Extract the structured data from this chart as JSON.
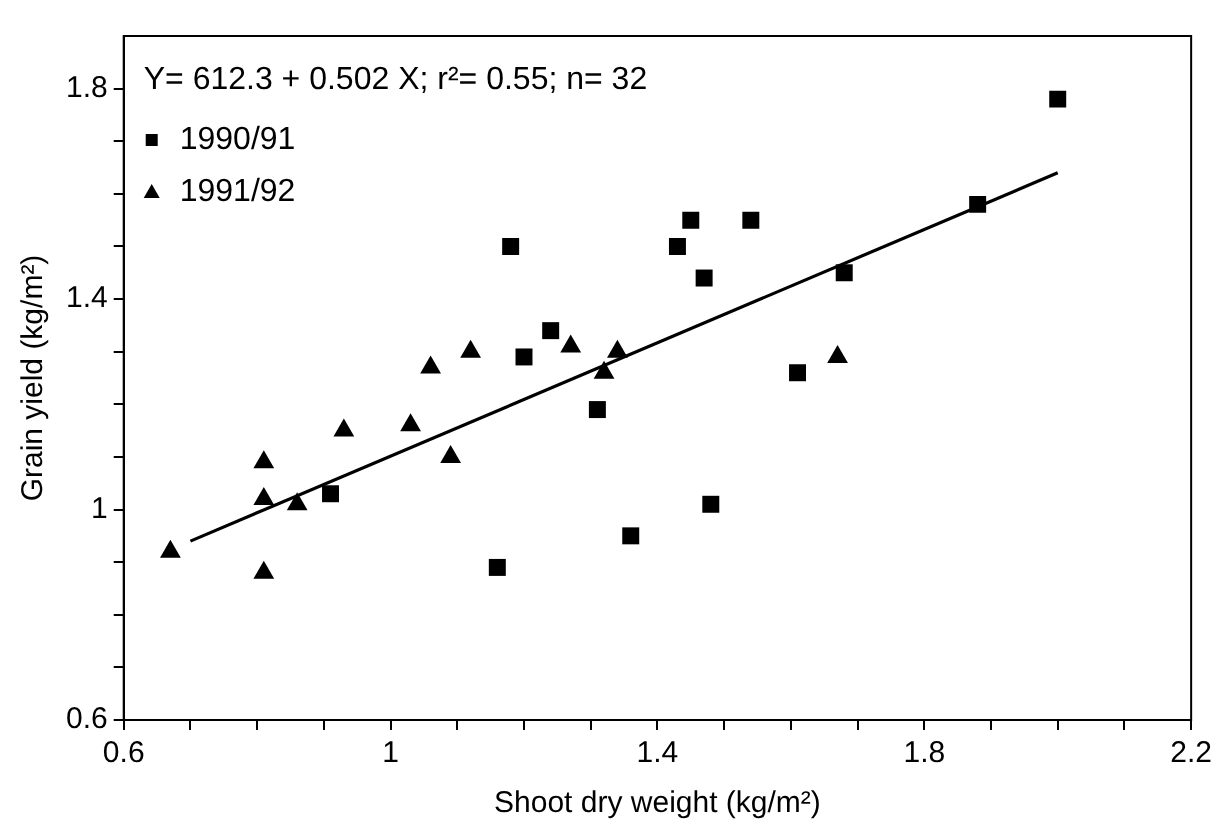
{
  "chart_data": {
    "type": "scatter",
    "xlabel": "Shoot dry weight (kg/m²)",
    "ylabel": "Grain yield (kg/m²)",
    "annotations": [
      "Y= 612.3 + 0.502 X; r²= 0.55; n= 32"
    ],
    "xlim": [
      0.6,
      2.2
    ],
    "xticks": [
      0.6,
      {
        "value": 0.7,
        "label": null
      },
      {
        "value": 0.8,
        "label": null
      },
      {
        "value": 0.9,
        "label": null
      },
      1,
      {
        "value": 1.1,
        "label": null
      },
      {
        "value": 1.2,
        "label": null
      },
      {
        "value": 1.3,
        "label": null
      },
      1.4,
      {
        "value": 1.5,
        "label": null
      },
      {
        "value": 1.6,
        "label": null
      },
      {
        "value": 1.7,
        "label": null
      },
      1.8,
      {
        "value": 1.9,
        "label": null
      },
      {
        "value": 2.0,
        "label": null
      },
      {
        "value": 2.1,
        "label": null
      },
      2.2
    ],
    "ylim": [
      0.6,
      1.9
    ],
    "yticks": [
      0.6,
      {
        "value": 0.7,
        "label": null
      },
      {
        "value": 0.8,
        "label": null
      },
      {
        "value": 0.9,
        "label": null
      },
      1,
      {
        "value": 1.1,
        "label": null
      },
      {
        "value": 1.2,
        "label": null
      },
      {
        "value": 1.3,
        "label": null
      },
      1.4,
      {
        "value": 1.5,
        "label": null
      },
      {
        "value": 1.6,
        "label": null
      },
      {
        "value": 1.7,
        "label": null
      },
      1.8
    ],
    "grid": false,
    "legend": "top left",
    "series": [
      {
        "name": "1990/91",
        "color": "#000000",
        "marker": "square",
        "x": [
          1.18,
          1.2,
          1.24,
          2.0,
          1.88,
          1.45,
          1.43,
          1.54,
          1.47,
          1.68,
          1.61,
          1.31,
          0.91,
          1.16,
          1.36,
          1.48
        ],
        "values": [
          1.5,
          1.29,
          1.34,
          1.78,
          1.58,
          1.55,
          1.5,
          1.55,
          1.44,
          1.45,
          1.26,
          1.19,
          1.03,
          0.89,
          0.95,
          1.01
        ]
      },
      {
        "name": "1991/92",
        "color": "#000000",
        "marker": "triangle",
        "x": [
          1.06,
          1.12,
          1.27,
          1.34,
          1.32,
          1.67,
          0.93,
          1.03,
          1.09,
          0.81,
          0.81,
          0.86,
          0.67,
          0.81
        ],
        "values": [
          1.27,
          1.3,
          1.31,
          1.3,
          1.26,
          1.29,
          1.15,
          1.16,
          1.1,
          1.09,
          1.02,
          1.01,
          0.92,
          0.88
        ]
      },
      {
        "type": "line",
        "color": "#000000",
        "marker": "none",
        "line_style": "solid",
        "x": [
          0.7,
          2.0
        ],
        "values": [
          0.94,
          1.64
        ]
      }
    ]
  }
}
